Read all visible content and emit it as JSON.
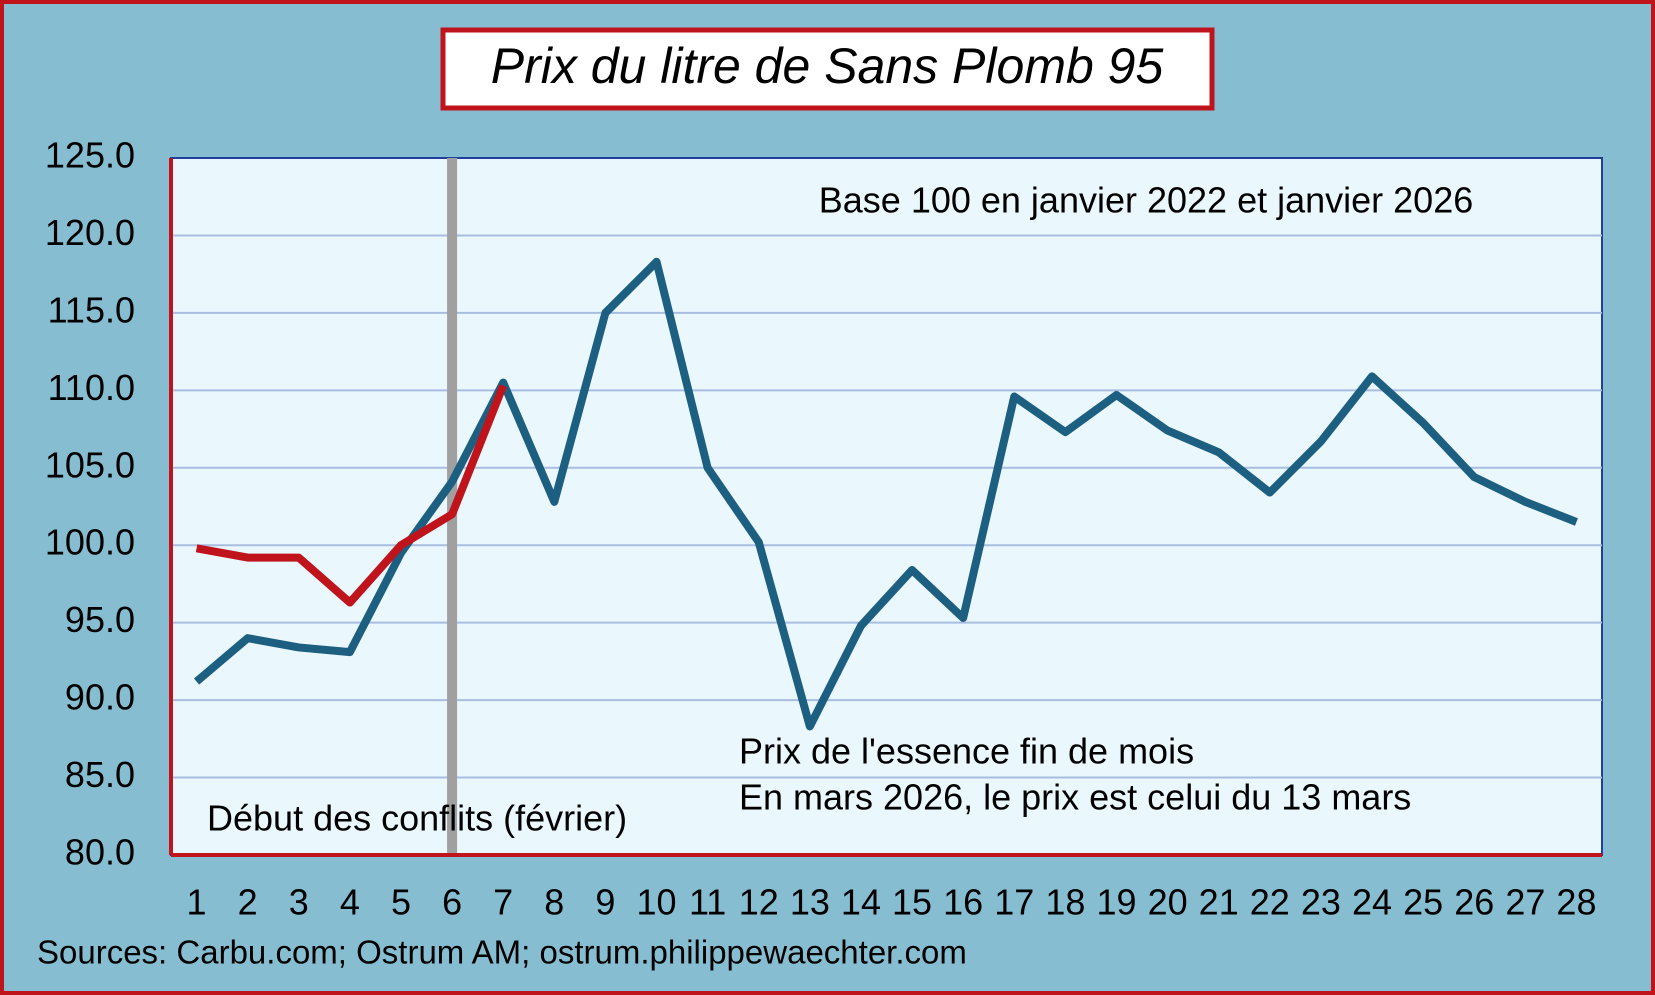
{
  "chart_data": {
    "type": "line",
    "title": "Prix du litre de Sans Plomb 95",
    "source": "Sources: Carbu.com; Ostrum AM; ostrum.philippewaechter.com",
    "categories": [
      "1",
      "2",
      "3",
      "4",
      "5",
      "6",
      "7",
      "8",
      "9",
      "10",
      "11",
      "12",
      "13",
      "14",
      "15",
      "16",
      "17",
      "18",
      "19",
      "20",
      "21",
      "22",
      "23",
      "24",
      "25",
      "26",
      "27",
      "28"
    ],
    "series": [
      {
        "color": "#1d5f80",
        "values": [
          91.2,
          94.0,
          93.4,
          93.1,
          99.5,
          104.1,
          110.5,
          102.8,
          115.0,
          118.3,
          105.0,
          100.2,
          88.3,
          94.8,
          98.4,
          95.3,
          109.6,
          107.3,
          109.7,
          107.4,
          106.0,
          103.4,
          106.7,
          110.9,
          107.9,
          104.4,
          102.8,
          101.5
        ]
      },
      {
        "color": "#c0141c",
        "values": [
          99.8,
          99.2,
          99.2,
          96.3,
          100.0,
          102.0,
          110.3,
          null,
          null,
          null,
          null,
          null,
          null,
          null,
          null,
          null,
          null,
          null,
          null,
          null,
          null,
          null,
          null,
          null,
          null,
          null,
          null,
          null
        ]
      }
    ],
    "ylim": [
      80,
      125
    ],
    "yticks": [
      {
        "value": 80,
        "label": "80.0"
      },
      {
        "value": 85,
        "label": "85.0"
      },
      {
        "value": 90,
        "label": "90.0"
      },
      {
        "value": 95,
        "label": "95.0"
      },
      {
        "value": 100,
        "label": "100.0"
      },
      {
        "value": 105,
        "label": "105.0"
      },
      {
        "value": 110,
        "label": "110.0"
      },
      {
        "value": 115,
        "label": "115.0"
      },
      {
        "value": 120,
        "label": "120.0"
      },
      {
        "value": 125,
        "label": "125.0"
      }
    ],
    "grid": true,
    "event": {
      "category": "6",
      "text": "Début des conflits (février)",
      "color": "#a0a0a0"
    },
    "notes": [
      "Base 100 en janvier 2022 et janvier 2026",
      "Prix de l'essence fin de mois",
      "En mars 2026, le prix est celui du 13 mars"
    ]
  }
}
